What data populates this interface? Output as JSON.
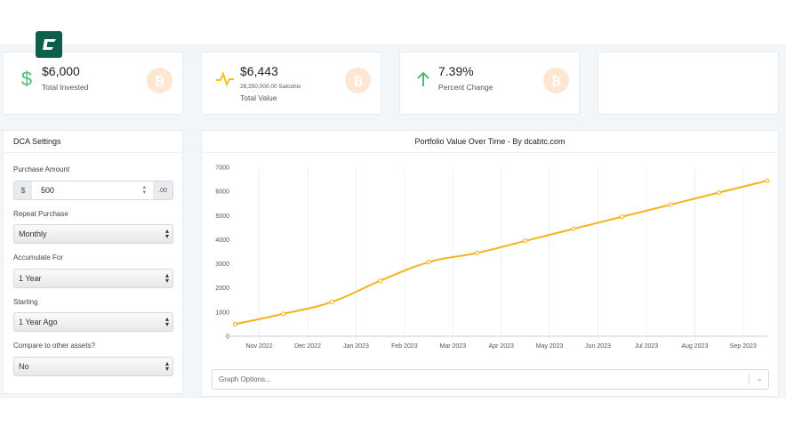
{
  "logo": {
    "letter": "C",
    "color": "#0d5e4a"
  },
  "cards": [
    {
      "icon": "dollar-icon",
      "value": "$6,000",
      "label": "Total Invested"
    },
    {
      "icon": "pulse-icon",
      "value": "$6,443",
      "sub": "28,350,000.00 Satoshis",
      "label": "Total Value"
    },
    {
      "icon": "arrow-up-icon",
      "value": "7.39%",
      "label": "Percent Change"
    }
  ],
  "settings": {
    "title": "DCA Settings",
    "purchase_amount_label": "Purchase Amount",
    "currency_prefix": "$",
    "amount": "500",
    "amount_suffix": ".00",
    "repeat_label": "Repeat Purchase",
    "repeat_value": "Monthly",
    "accumulate_label": "Accumulate For",
    "accumulate_value": "1 Year",
    "starting_label": "Starting",
    "starting_value": "1 Year Ago",
    "compare_label": "Compare to other assets?",
    "compare_value": "No"
  },
  "graph_options_placeholder": "Graph Options...",
  "chart_data": {
    "type": "line",
    "title": "Portfolio Value Over Time - By dcabtc.com",
    "color": "#f5b21b",
    "x_tick_labels": [
      "Nov 2022",
      "Dec 2022",
      "Jan 2023",
      "Feb 2023",
      "Mar 2023",
      "Apr 2023",
      "May 2023",
      "Jun 2023",
      "Jul 2023",
      "Aug 2023",
      "Sep 2023"
    ],
    "x_month_offsets": [
      -0.5,
      0.5,
      1.5,
      2.5,
      3.5,
      4.5,
      5.5,
      6.5,
      7.5,
      8.5,
      9.5,
      10.5
    ],
    "values": [
      500,
      930,
      1420,
      2300,
      3070,
      3450,
      3950,
      4450,
      4950,
      5450,
      5950,
      6443
    ],
    "xlim": [
      -0.6,
      10.5
    ],
    "ylim": [
      0,
      7000
    ],
    "y_ticks": [
      0,
      1000,
      2000,
      3000,
      4000,
      5000,
      6000,
      7000
    ],
    "grid": true,
    "legend": "none"
  }
}
